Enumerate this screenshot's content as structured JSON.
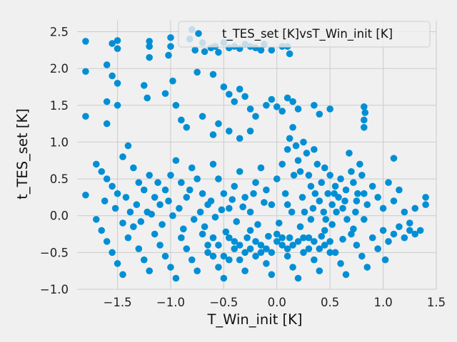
{
  "chart_data": {
    "type": "scatter",
    "xlabel": "T_Win_init [K]",
    "ylabel": "t_TES_set [K]",
    "xlim": [
      -1.88,
      1.5
    ],
    "ylim": [
      -1.0,
      2.65
    ],
    "x_ticks": [
      "−1.5",
      "−1.0",
      "−0.5",
      "0.0",
      "0.5",
      "1.0",
      "1.5"
    ],
    "y_ticks": [
      "−1.0",
      "−0.5",
      "0.0",
      "0.5",
      "1.0",
      "1.5",
      "2.0",
      "2.5"
    ],
    "x_tick_values": [
      -1.5,
      -1.0,
      -0.5,
      0.0,
      0.5,
      1.0,
      1.5
    ],
    "y_tick_values": [
      -1.0,
      -0.5,
      0.0,
      0.5,
      1.0,
      1.5,
      2.0,
      2.5
    ],
    "grid": true,
    "legend_position": "top-right",
    "colors": {
      "marker": "#008fd5",
      "grid": "#cbcbcb",
      "background": "#f0f0f0"
    },
    "series": [
      {
        "name": "t_TES_set [K]vsT_Win_init [K]",
        "points": [
          [
            -1.8,
            2.37
          ],
          [
            -1.8,
            1.96
          ],
          [
            -1.8,
            1.35
          ],
          [
            -1.8,
            0.28
          ],
          [
            -1.5,
            2.38
          ],
          [
            -1.5,
            2.27
          ],
          [
            -1.5,
            1.8
          ],
          [
            -1.5,
            1.5
          ],
          [
            -1.55,
            2.34
          ],
          [
            -1.55,
            1.9
          ],
          [
            -1.6,
            2.05
          ],
          [
            -1.6,
            1.55
          ],
          [
            -1.6,
            1.25
          ],
          [
            -1.2,
            2.37
          ],
          [
            -1.2,
            2.3
          ],
          [
            -1.2,
            2.15
          ],
          [
            -1.25,
            1.77
          ],
          [
            -1.22,
            1.6
          ],
          [
            -1.0,
            2.42
          ],
          [
            -1.0,
            2.3
          ],
          [
            -1.02,
            2.18
          ],
          [
            -1.05,
            1.66
          ],
          [
            -0.98,
            1.83
          ],
          [
            -0.95,
            1.5
          ],
          [
            -0.8,
            2.53
          ],
          [
            -0.82,
            2.4
          ],
          [
            -0.77,
            2.25
          ],
          [
            -0.7,
            2.35
          ],
          [
            -0.68,
            2.23
          ],
          [
            -0.62,
            2.28
          ],
          [
            -0.58,
            2.3
          ],
          [
            -0.55,
            2.22
          ],
          [
            -0.5,
            2.35
          ],
          [
            -0.45,
            2.28
          ],
          [
            -0.4,
            2.3
          ],
          [
            -0.35,
            2.27
          ],
          [
            -0.3,
            2.33
          ],
          [
            -0.25,
            2.3
          ],
          [
            -0.2,
            2.28
          ],
          [
            -0.15,
            2.25
          ],
          [
            -0.12,
            2.33
          ],
          [
            -0.05,
            2.25
          ],
          [
            0.05,
            2.3
          ],
          [
            0.1,
            2.3
          ],
          [
            0.12,
            2.2
          ],
          [
            -0.75,
            1.95
          ],
          [
            -0.6,
            1.92
          ],
          [
            -0.5,
            1.75
          ],
          [
            -0.45,
            1.65
          ],
          [
            -0.4,
            1.55
          ],
          [
            -0.35,
            1.72
          ],
          [
            -0.3,
            1.62
          ],
          [
            -0.25,
            1.45
          ],
          [
            -0.2,
            1.35
          ],
          [
            -0.1,
            1.5
          ],
          [
            -0.05,
            1.58
          ],
          [
            0.0,
            1.48
          ],
          [
            0.05,
            1.42
          ],
          [
            0.1,
            1.6
          ],
          [
            0.15,
            1.55
          ],
          [
            0.2,
            1.45
          ],
          [
            0.35,
            1.5
          ],
          [
            0.4,
            1.38
          ],
          [
            0.5,
            1.45
          ],
          [
            -0.9,
            1.3
          ],
          [
            -0.85,
            1.2
          ],
          [
            -0.7,
            1.35
          ],
          [
            -0.6,
            1.1
          ],
          [
            -0.55,
            1.25
          ],
          [
            -0.45,
            1.15
          ],
          [
            -0.35,
            1.05
          ],
          [
            -0.25,
            1.15
          ],
          [
            0.82,
            1.48
          ],
          [
            0.83,
            1.4
          ],
          [
            0.82,
            1.3
          ],
          [
            0.82,
            1.2
          ],
          [
            1.1,
            0.78
          ],
          [
            -1.7,
            0.7
          ],
          [
            -1.65,
            0.6
          ],
          [
            -1.6,
            0.5
          ],
          [
            -1.55,
            0.4
          ],
          [
            -1.5,
            0.3
          ],
          [
            -1.45,
            0.8
          ],
          [
            -1.4,
            0.95
          ],
          [
            -1.35,
            0.65
          ],
          [
            -1.3,
            0.45
          ],
          [
            -1.25,
            0.35
          ],
          [
            -1.2,
            0.55
          ],
          [
            -1.15,
            0.25
          ],
          [
            -1.1,
            0.15
          ],
          [
            -1.05,
            0.35
          ],
          [
            -1.0,
            0.55
          ],
          [
            -0.95,
            0.75
          ],
          [
            -0.9,
            0.45
          ],
          [
            -0.85,
            0.25
          ],
          [
            -0.8,
            0.65
          ],
          [
            -0.75,
            0.5
          ],
          [
            -0.7,
            0.3
          ],
          [
            -0.65,
            0.15
          ],
          [
            -0.6,
            0.7
          ],
          [
            -0.55,
            0.5
          ],
          [
            -0.5,
            0.3
          ],
          [
            -0.45,
            0.1
          ],
          [
            -0.4,
            0.4
          ],
          [
            -0.35,
            0.6
          ],
          [
            -0.3,
            0.25
          ],
          [
            -0.25,
            0.05
          ],
          [
            -0.2,
            0.45
          ],
          [
            -0.15,
            0.65
          ],
          [
            -0.1,
            0.35
          ],
          [
            -0.05,
            0.15
          ],
          [
            0.0,
            0.5
          ],
          [
            0.05,
            0.7
          ],
          [
            0.1,
            0.9
          ],
          [
            0.12,
            1.05
          ],
          [
            0.15,
            1.2
          ],
          [
            0.18,
            0.95
          ],
          [
            0.2,
            0.75
          ],
          [
            0.22,
            0.6
          ],
          [
            0.25,
            1.0
          ],
          [
            0.28,
            0.85
          ],
          [
            0.3,
            0.55
          ],
          [
            0.32,
            0.4
          ],
          [
            0.35,
            0.9
          ],
          [
            0.38,
            0.7
          ],
          [
            0.4,
            0.2
          ],
          [
            0.42,
            0.45
          ],
          [
            0.45,
            0.65
          ],
          [
            0.48,
            0.3
          ],
          [
            0.5,
            0.55
          ],
          [
            0.52,
            0.15
          ],
          [
            0.55,
            0.4
          ],
          [
            0.58,
            0.25
          ],
          [
            0.6,
            0.5
          ],
          [
            0.62,
            0.1
          ],
          [
            0.65,
            0.35
          ],
          [
            0.68,
            0.85
          ],
          [
            0.7,
            0.6
          ],
          [
            0.72,
            0.45
          ],
          [
            0.75,
            0.2
          ],
          [
            0.78,
            0.7
          ],
          [
            0.8,
            0.55
          ],
          [
            0.82,
            0.3
          ],
          [
            0.85,
            0.15
          ],
          [
            0.9,
            0.4
          ],
          [
            0.95,
            0.25
          ],
          [
            1.0,
            0.1
          ],
          [
            1.05,
            0.45
          ],
          [
            1.1,
            0.2
          ],
          [
            1.15,
            0.35
          ],
          [
            1.2,
            0.05
          ],
          [
            1.25,
            -0.1
          ],
          [
            1.3,
            0.1
          ],
          [
            1.35,
            -0.2
          ],
          [
            1.4,
            0.25
          ],
          [
            1.4,
            0.15
          ],
          [
            -1.7,
            -0.05
          ],
          [
            -1.65,
            -0.2
          ],
          [
            -1.6,
            -0.35
          ],
          [
            -1.55,
            -0.5
          ],
          [
            -1.5,
            -0.65
          ],
          [
            -1.45,
            -0.8
          ],
          [
            -1.4,
            -0.3
          ],
          [
            -1.35,
            -0.15
          ],
          [
            -1.3,
            -0.45
          ],
          [
            -1.25,
            -0.6
          ],
          [
            -1.2,
            -0.75
          ],
          [
            -1.15,
            -0.25
          ],
          [
            -1.1,
            -0.4
          ],
          [
            -1.05,
            -0.55
          ],
          [
            -1.0,
            -0.7
          ],
          [
            -0.95,
            -0.85
          ],
          [
            -0.9,
            -0.3
          ],
          [
            -0.85,
            -0.45
          ],
          [
            -0.8,
            -0.6
          ],
          [
            -0.75,
            -0.75
          ],
          [
            -0.7,
            -0.25
          ],
          [
            -0.65,
            -0.4
          ],
          [
            -0.6,
            -0.55
          ],
          [
            -0.55,
            -0.7
          ],
          [
            -0.5,
            -0.85
          ],
          [
            -0.45,
            -0.3
          ],
          [
            -0.4,
            -0.45
          ],
          [
            -0.35,
            -0.6
          ],
          [
            -0.3,
            -0.75
          ],
          [
            -0.25,
            -0.2
          ],
          [
            -0.2,
            -0.35
          ],
          [
            -0.15,
            -0.5
          ],
          [
            -0.1,
            -0.65
          ],
          [
            -0.05,
            -0.8
          ],
          [
            0.0,
            -0.25
          ],
          [
            0.05,
            -0.4
          ],
          [
            0.1,
            -0.55
          ],
          [
            0.15,
            -0.7
          ],
          [
            0.2,
            -0.85
          ],
          [
            0.25,
            -0.3
          ],
          [
            0.3,
            -0.45
          ],
          [
            0.35,
            -0.6
          ],
          [
            0.4,
            -0.75
          ],
          [
            0.45,
            -0.2
          ],
          [
            0.5,
            -0.35
          ],
          [
            0.55,
            -0.5
          ],
          [
            0.6,
            -0.65
          ],
          [
            0.65,
            -0.8
          ],
          [
            0.7,
            -0.25
          ],
          [
            0.75,
            -0.4
          ],
          [
            0.8,
            -0.55
          ],
          [
            0.85,
            -0.7
          ],
          [
            0.9,
            -0.3
          ],
          [
            0.95,
            -0.45
          ],
          [
            1.0,
            -0.2
          ],
          [
            1.05,
            -0.35
          ],
          [
            1.1,
            -0.25
          ],
          [
            1.15,
            -0.15
          ],
          [
            1.2,
            -0.3
          ],
          [
            1.25,
            -0.2
          ],
          [
            1.3,
            -0.25
          ],
          [
            1.02,
            -0.6
          ],
          [
            -1.45,
            -0.1
          ],
          [
            -1.38,
            0.05
          ],
          [
            -1.28,
            -0.08
          ],
          [
            -1.18,
            0.02
          ],
          [
            -1.08,
            -0.12
          ],
          [
            -0.98,
            0.0
          ],
          [
            -0.88,
            -0.18
          ],
          [
            -0.78,
            -0.05
          ],
          [
            -0.68,
            -0.15
          ],
          [
            -0.58,
            -0.02
          ],
          [
            -0.48,
            -0.22
          ],
          [
            -0.38,
            -0.08
          ],
          [
            -0.28,
            -0.3
          ],
          [
            -0.18,
            -0.12
          ],
          [
            -0.08,
            -0.28
          ],
          [
            0.02,
            -0.1
          ],
          [
            0.12,
            -0.3
          ],
          [
            0.22,
            -0.15
          ],
          [
            0.32,
            -0.05
          ],
          [
            0.42,
            -0.28
          ],
          [
            0.52,
            -0.12
          ],
          [
            0.62,
            -0.32
          ],
          [
            0.72,
            -0.18
          ],
          [
            0.82,
            -0.05
          ],
          [
            0.08,
            0.3
          ],
          [
            0.1,
            0.15
          ],
          [
            0.14,
            0.05
          ],
          [
            0.16,
            0.55
          ],
          [
            0.24,
            0.25
          ],
          [
            0.26,
            0.05
          ],
          [
            0.34,
            0.1
          ],
          [
            0.36,
            0.3
          ],
          [
            0.44,
            0.05
          ],
          [
            0.46,
            -0.05
          ],
          [
            0.54,
            0.3
          ],
          [
            0.56,
            0.05
          ],
          [
            0.64,
            0.2
          ],
          [
            0.66,
            -0.05
          ],
          [
            0.74,
            0.05
          ],
          [
            0.76,
            0.3
          ],
          [
            -1.62,
            0.2
          ],
          [
            -1.52,
            0.1
          ],
          [
            -1.42,
            0.25
          ],
          [
            -1.32,
            0.15
          ],
          [
            -1.22,
            0.05
          ],
          [
            -1.12,
            0.45
          ],
          [
            -1.02,
            0.2
          ],
          [
            -0.92,
            0.1
          ],
          [
            -0.82,
            0.35
          ],
          [
            -0.72,
            0.05
          ],
          [
            -0.62,
            0.2
          ],
          [
            -0.52,
            0.08
          ],
          [
            -0.42,
            0.22
          ],
          [
            -0.32,
            0.12
          ],
          [
            -0.22,
            0.3
          ],
          [
            -0.12,
            0.18
          ],
          [
            -0.55,
            -0.4
          ],
          [
            -0.6,
            -0.3
          ],
          [
            -0.65,
            -0.5
          ],
          [
            -0.5,
            -0.55
          ],
          [
            -0.45,
            -0.6
          ],
          [
            -0.4,
            -0.35
          ],
          [
            -0.35,
            -0.4
          ],
          [
            -0.3,
            -0.5
          ],
          [
            -0.25,
            -0.45
          ],
          [
            -0.2,
            -0.55
          ],
          [
            -0.15,
            -0.4
          ],
          [
            -0.1,
            -0.45
          ],
          [
            -0.05,
            -0.5
          ],
          [
            0.0,
            -0.35
          ],
          [
            0.05,
            -0.3
          ],
          [
            0.1,
            -0.45
          ],
          [
            0.15,
            -0.4
          ],
          [
            0.2,
            -0.35
          ],
          [
            0.25,
            -0.5
          ],
          [
            0.3,
            -0.3
          ],
          [
            0.35,
            -0.35
          ],
          [
            0.4,
            -0.45
          ],
          [
            0.45,
            -0.4
          ],
          [
            0.5,
            -0.5
          ]
        ]
      }
    ]
  }
}
